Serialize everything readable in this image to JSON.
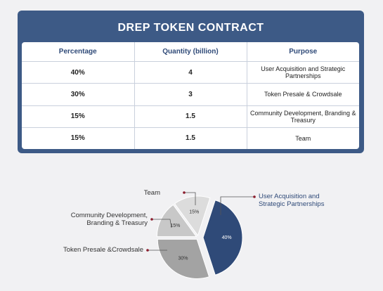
{
  "title": "DREP TOKEN CONTRACT",
  "table": {
    "header": [
      "Percentage",
      "Quantity (billion)",
      "Purpose"
    ],
    "rows": [
      [
        "40%",
        "4",
        "User Acquisition and Strategic Partnerships"
      ],
      [
        "30%",
        "3",
        "Token Presale & Crowdsale"
      ],
      [
        "15%",
        "1.5",
        "Community Development, Branding & Treasury"
      ],
      [
        "15%",
        "1.5",
        "Team"
      ]
    ]
  },
  "chart_data": {
    "type": "pie",
    "categories": [
      "User Acquisition and Strategic Partnerships",
      "Token Presale &Crowdsale",
      "Community Development, Branding & Treasury",
      "Team"
    ],
    "values": [
      40,
      30,
      15,
      15
    ],
    "value_labels": [
      "40%",
      "30%",
      "15%",
      "15%"
    ],
    "colors": [
      "#2f4a78",
      "#a3a3a3",
      "#c8c8c8",
      "#dcdcdc"
    ]
  }
}
